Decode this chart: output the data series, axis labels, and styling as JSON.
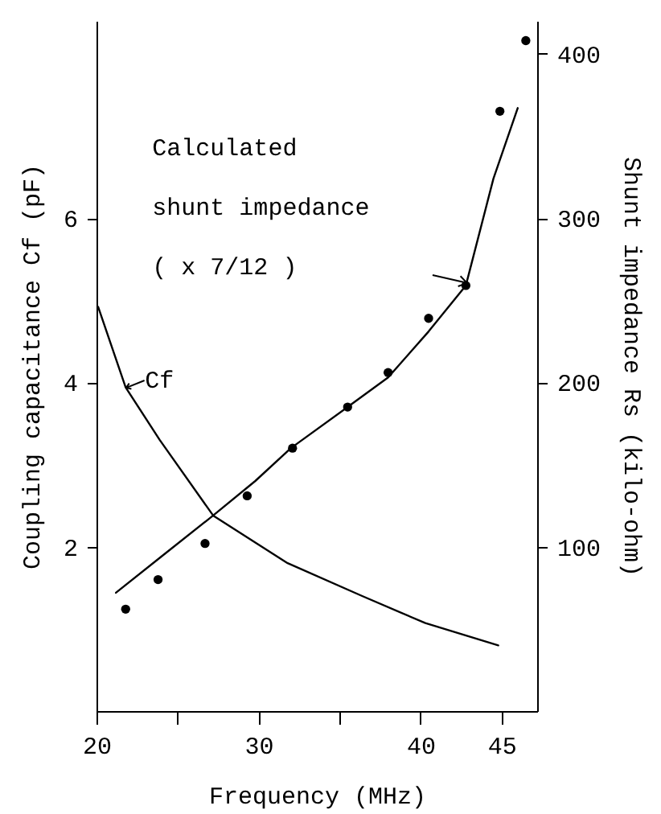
{
  "chart_data": {
    "type": "line",
    "xlabel": "Frequency (MHz)",
    "ylabel": "Coupling capacitance Cf (pF)",
    "y2label": "Shunt impedance Rs (kilo-ohm)",
    "xlim": [
      20,
      47.2
    ],
    "xticks": [
      20,
      {
        "value": 25,
        "label": null
      },
      30,
      {
        "value": 35,
        "label": null
      },
      40,
      45
    ],
    "ylim": [
      0,
      8.4
    ],
    "yticks": [
      2,
      4,
      6
    ],
    "y2lim": [
      0,
      420
    ],
    "y2ticks": [
      100,
      200,
      300,
      400
    ],
    "series": [
      {
        "name": "Cf",
        "color": "#000000",
        "x": [
          20.1,
          21.8,
          23.9,
          27.2,
          31.8,
          36.4,
          40.3,
          44.8
        ],
        "values": [
          4.92,
          3.94,
          3.3,
          2.38,
          1.8,
          1.4,
          1.07,
          0.8
        ]
      },
      {
        "name": "Calculated\nshunt impedance\n( x 7/12 )",
        "axis": "y2",
        "color": "#000000",
        "x": [
          21.2,
          24,
          27.2,
          29.8,
          32,
          35.5,
          38,
          40.5,
          42.8,
          44.5,
          46
        ],
        "values": [
          72,
          94,
          119,
          140,
          160,
          185,
          203,
          231,
          259,
          324,
          367
        ]
      },
      {
        "type": "scatter",
        "axis": "y2",
        "color": "#000000",
        "marker": "circle",
        "x": [
          21.8,
          23.8,
          26.7,
          29.3,
          32.1,
          35.5,
          38,
          40.5,
          42.8,
          44.9,
          46.5
        ],
        "values": [
          62,
          80,
          102,
          131,
          160,
          185,
          206,
          239,
          259,
          365,
          408
        ]
      }
    ]
  }
}
